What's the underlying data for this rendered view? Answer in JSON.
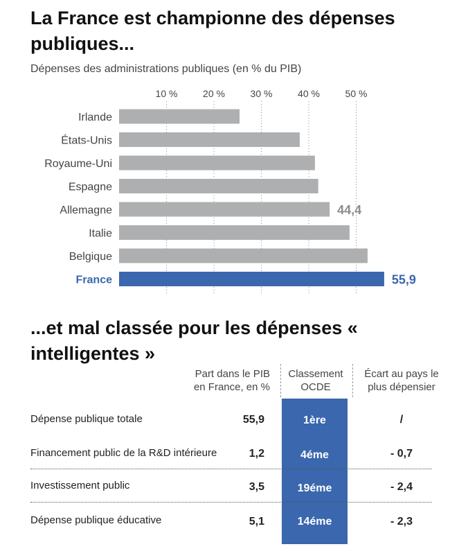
{
  "title_1": "La France est championne des dépenses publiques...",
  "subtitle_1": "Dépenses des administrations publiques (en % du PIB)",
  "chart_data": {
    "type": "bar",
    "orientation": "horizontal",
    "title": "La France est championne des dépenses publiques...",
    "subtitle": "Dépenses des administrations publiques (en % du PIB)",
    "categories": [
      "Irlande",
      "États-Unis",
      "Royaume-Uni",
      "Espagne",
      "Allemagne",
      "Italie",
      "Belgique",
      "France"
    ],
    "values": [
      25.4,
      38.1,
      41.3,
      42.0,
      44.4,
      48.6,
      52.4,
      55.9
    ],
    "value_labels": [
      "",
      "",
      "",
      "",
      "44,4",
      "",
      "",
      "55,9"
    ],
    "highlight": "France",
    "tick_values": [
      10,
      20,
      30,
      40,
      50
    ],
    "tick_labels": [
      "10 %",
      "20 %",
      "30 %",
      "40 %",
      "50 %"
    ],
    "xlim": [
      0,
      60
    ],
    "grid": "vertical dotted",
    "colors": {
      "default": "#aeafb0",
      "highlight": "#3a67ad",
      "label_default": "#8c8c8c"
    }
  },
  "title_2": "...et mal classée pour les dépenses « intelligentes »",
  "table": {
    "headers": {
      "share": "Part dans le PIB en France, en %",
      "rank": "Classement OCDE",
      "gap": "Écart au pays le plus dépensier"
    },
    "rows": [
      {
        "label": "Dépense publique totale",
        "share": "55,9",
        "rank": "1ère",
        "gap": "/"
      },
      {
        "label": "Financement public de la R&D intérieure",
        "share": "1,2",
        "rank": "4éme",
        "gap": "- 0,7"
      },
      {
        "label": "Investissement public",
        "share": "3,5",
        "rank": "19éme",
        "gap": "- 2,4"
      },
      {
        "label": "Dépense publique éducative",
        "share": "5,1",
        "rank": "14éme",
        "gap": "- 2,3"
      }
    ],
    "colors": {
      "rank_bg": "#3a67ad"
    }
  }
}
